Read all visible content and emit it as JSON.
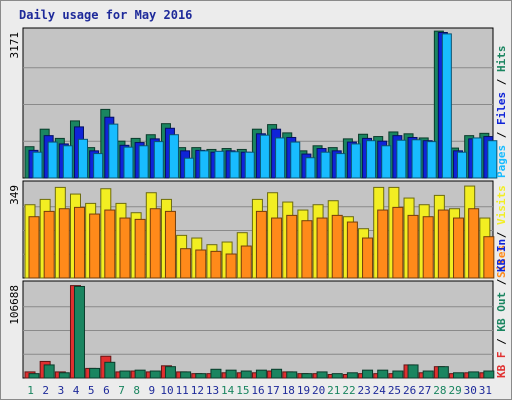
{
  "title": "Daily usage for May 2016",
  "colors": {
    "hits": "#1a8560",
    "files": "#0f24d8",
    "pages": "#18bcff",
    "visits": "#f2ee22",
    "sites": "#ff8a1a",
    "kb_in": "#1a8560",
    "kb_out": "#1a8560",
    "kb_f": "#e03030",
    "panel_bg": "#c4c4c4",
    "weekend_label": "#1a8560",
    "weekday_label": "#1e2a9a"
  },
  "chart_data": [
    {
      "type": "bar",
      "ymax_label": "3171",
      "ylim": [
        0,
        3171
      ],
      "legend": [
        {
          "label": "Pages",
          "color": "#18bcff"
        },
        {
          "label": "Files",
          "color": "#0f24d8"
        },
        {
          "label": "Hits",
          "color": "#1a8560"
        }
      ],
      "categories": [
        "1",
        "2",
        "3",
        "4",
        "5",
        "6",
        "7",
        "8",
        "9",
        "10",
        "11",
        "12",
        "13",
        "14",
        "15",
        "16",
        "17",
        "18",
        "19",
        "20",
        "21",
        "22",
        "23",
        "24",
        "25",
        "26",
        "27",
        "28",
        "29",
        "30",
        "31"
      ],
      "series": [
        {
          "name": "Hits",
          "values": [
            680,
            1060,
            860,
            1240,
            660,
            1490,
            800,
            860,
            940,
            1180,
            660,
            660,
            620,
            640,
            620,
            1060,
            1160,
            980,
            590,
            700,
            660,
            850,
            950,
            900,
            1000,
            960,
            870,
            3190,
            650,
            920,
            970
          ]
        },
        {
          "name": "Files",
          "values": [
            600,
            920,
            740,
            1110,
            590,
            1320,
            710,
            770,
            850,
            1080,
            590,
            600,
            560,
            590,
            560,
            960,
            1060,
            880,
            520,
            640,
            590,
            780,
            860,
            800,
            920,
            880,
            810,
            3160,
            590,
            850,
            900
          ]
        },
        {
          "name": "Pages",
          "values": [
            560,
            780,
            700,
            840,
            530,
            1170,
            670,
            700,
            790,
            940,
            430,
            590,
            580,
            570,
            560,
            930,
            870,
            780,
            440,
            560,
            530,
            740,
            810,
            700,
            820,
            830,
            790,
            3130,
            560,
            870,
            810
          ]
        }
      ]
    },
    {
      "type": "bar",
      "ymax_label": "349",
      "ylim": [
        0,
        349
      ],
      "legend": [
        {
          "label": "Sites",
          "color": "#ff8a1a"
        },
        {
          "label": "Visits",
          "color": "#f2ee22"
        }
      ],
      "categories": [
        "1",
        "2",
        "3",
        "4",
        "5",
        "6",
        "7",
        "8",
        "9",
        "10",
        "11",
        "12",
        "13",
        "14",
        "15",
        "16",
        "17",
        "18",
        "19",
        "20",
        "21",
        "22",
        "23",
        "24",
        "25",
        "26",
        "27",
        "28",
        "29",
        "30",
        "31"
      ],
      "series": [
        {
          "name": "Visits",
          "values": [
            275,
            295,
            340,
            315,
            280,
            335,
            280,
            245,
            320,
            295,
            160,
            150,
            125,
            135,
            170,
            295,
            320,
            285,
            255,
            275,
            290,
            230,
            185,
            340,
            340,
            300,
            275,
            310,
            260,
            345,
            225
          ]
        },
        {
          "name": "Sites",
          "values": [
            230,
            250,
            260,
            265,
            240,
            255,
            225,
            220,
            260,
            250,
            110,
            105,
            100,
            90,
            120,
            250,
            225,
            235,
            215,
            225,
            235,
            210,
            150,
            255,
            265,
            235,
            230,
            255,
            225,
            260,
            155
          ]
        }
      ]
    },
    {
      "type": "bar",
      "ymax_label": "106688",
      "ylim": [
        0,
        106688
      ],
      "legend": [
        {
          "label": "KB F",
          "color": "#e03030"
        },
        {
          "label": "KB Out",
          "color": "#1a8560"
        },
        {
          "label": "KB In",
          "color": "#0f24d8"
        }
      ],
      "categories": [
        "1",
        "2",
        "3",
        "4",
        "5",
        "6",
        "7",
        "8",
        "9",
        "10",
        "11",
        "12",
        "13",
        "14",
        "15",
        "16",
        "17",
        "18",
        "19",
        "20",
        "21",
        "22",
        "23",
        "24",
        "25",
        "26",
        "27",
        "28",
        "29",
        "30",
        "31"
      ],
      "series": [
        {
          "name": "KB F",
          "values": [
            7000,
            19000,
            7000,
            106000,
            11000,
            25000,
            7000,
            8000,
            7000,
            14000,
            7000,
            5000,
            5000,
            6000,
            6000,
            6000,
            8000,
            7000,
            5000,
            5000,
            4000,
            4000,
            5000,
            5000,
            5000,
            15000,
            6000,
            13000,
            5000,
            6000,
            6000
          ]
        },
        {
          "name": "KB Out",
          "values": [
            5000,
            15000,
            6000,
            105000,
            11000,
            18000,
            8000,
            9000,
            8000,
            13000,
            7000,
            5000,
            10000,
            9000,
            8000,
            9000,
            10000,
            7000,
            5000,
            7000,
            5000,
            6000,
            9000,
            9000,
            8000,
            15000,
            8000,
            13000,
            6000,
            7000,
            8000
          ]
        }
      ]
    }
  ],
  "xaxis": {
    "weekend_days": [
      1,
      7,
      8,
      14,
      15,
      21,
      22,
      28,
      29
    ]
  }
}
